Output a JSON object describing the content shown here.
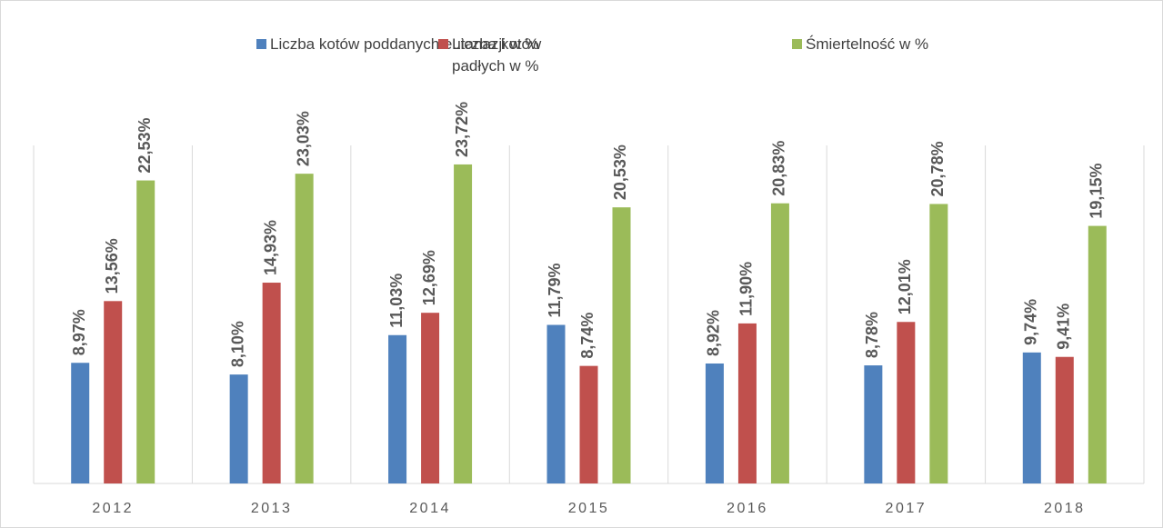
{
  "chart_data": {
    "type": "bar",
    "categories": [
      "2012",
      "2013",
      "2014",
      "2015",
      "2016",
      "2017",
      "2018"
    ],
    "series": [
      {
        "name": "Liczba kotów poddanych eutanazji w %",
        "color": "#4f81bd",
        "values": [
          8.97,
          8.1,
          11.03,
          11.79,
          8.92,
          8.78,
          9.74
        ],
        "value_labels": [
          "8,97%",
          "8,10%",
          "11,03%",
          "11,79%",
          "8,92%",
          "8,78%",
          "9,74%"
        ]
      },
      {
        "name": "Liczba kotów padłych w %",
        "color": "#c0504d",
        "values": [
          13.56,
          14.93,
          12.69,
          8.74,
          11.9,
          12.01,
          9.41
        ],
        "value_labels": [
          "13,56%",
          "14,93%",
          "12,69%",
          "8,74%",
          "11,90%",
          "12,01%",
          "9,41%"
        ]
      },
      {
        "name": "Śmiertelność w %",
        "color": "#9bbb59",
        "values": [
          22.53,
          23.03,
          23.72,
          20.53,
          20.83,
          20.78,
          19.15
        ],
        "value_labels": [
          "22,53%",
          "23,03%",
          "23,72%",
          "20,53%",
          "20,83%",
          "20,78%",
          "19,15%"
        ]
      }
    ],
    "ylim": [
      0,
      30
    ],
    "grid": false,
    "legend": "top"
  }
}
